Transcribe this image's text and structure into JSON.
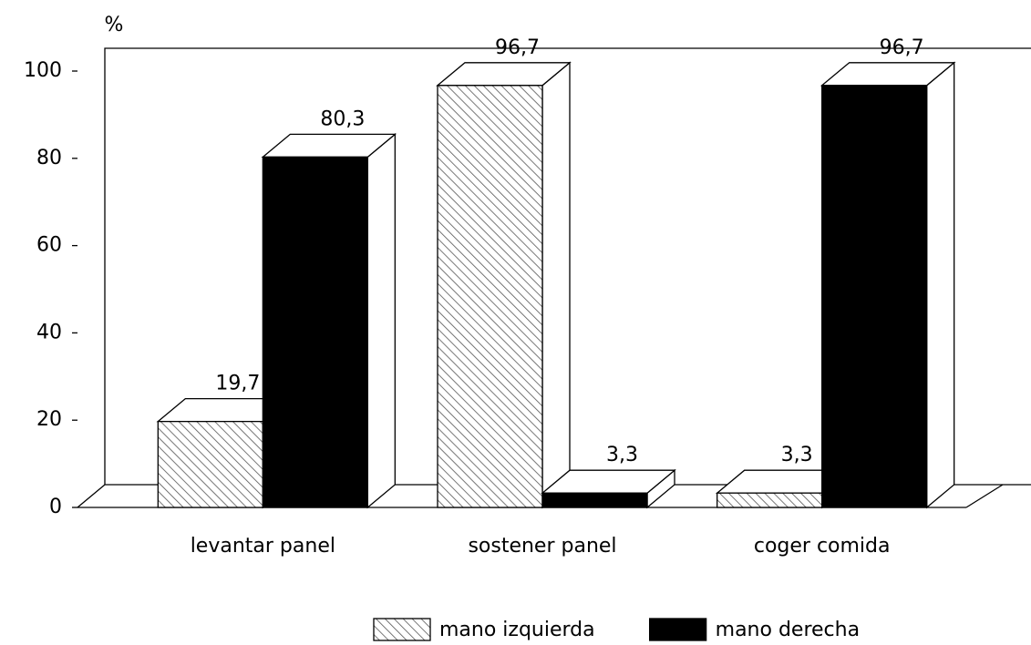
{
  "chart_data": {
    "type": "bar3d",
    "y_label": "%",
    "categories": [
      "levantar panel",
      "sostener panel",
      "coger comida"
    ],
    "series": [
      {
        "name": "mano izquierda",
        "color": "#555555",
        "pattern": "hatch",
        "values": [
          19.7,
          96.7,
          3.3
        ],
        "value_labels": [
          "19,7",
          "96,7",
          "3,3"
        ]
      },
      {
        "name": "mano derecha",
        "color": "#000000",
        "pattern": "solid",
        "values": [
          80.3,
          3.3,
          96.7
        ],
        "value_labels": [
          "80,3",
          "3,3",
          "96,7"
        ]
      }
    ],
    "ylim": [
      0,
      100
    ],
    "yticks": [
      0,
      20,
      40,
      60,
      80,
      100
    ],
    "grid": false,
    "legend": "bottom"
  }
}
